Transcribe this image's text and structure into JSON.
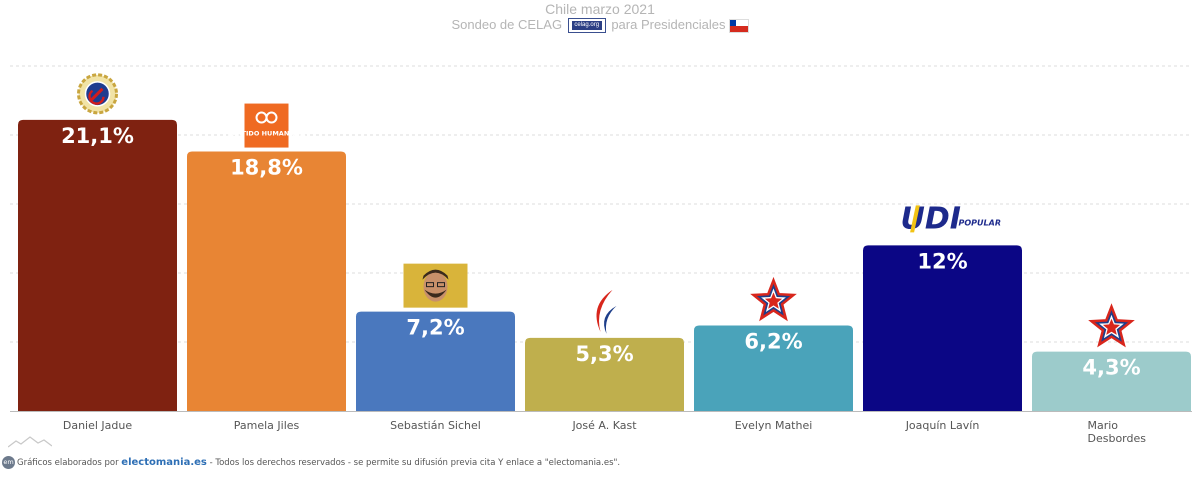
{
  "header": {
    "title": "Chile marzo 2021",
    "subtitle_before": "Sondeo de CELAG",
    "subtitle_after": "para Presidenciales",
    "celag_logo_text": "celag.org"
  },
  "colors": {
    "gridline": "#dddddd",
    "axis": "#bbbbbb"
  },
  "logos": {
    "partido_humanista": "PARTIDO HUMANISTA",
    "udi_main": "UDI",
    "udi_sub": "POPULAR"
  },
  "chart_data": {
    "type": "bar",
    "title": "",
    "xlabel": "",
    "ylabel": "",
    "ylim": [
      0,
      25
    ],
    "grid": true,
    "categories": [
      "Daniel Jadue",
      "Pamela Jiles",
      "Sebastián Sichel",
      "José A. Kast",
      "Evelyn Mathei",
      "Joaquín Lavín",
      "Mario Desbordes"
    ],
    "category_lines": [
      [
        "Daniel Jadue"
      ],
      [
        "Pamela Jiles"
      ],
      [
        "Sebastián Sichel"
      ],
      [
        "José A. Kast"
      ],
      [
        "Evelyn Mathei"
      ],
      [
        "Joaquín Lavín"
      ],
      [
        "Mario",
        "Desbordes"
      ]
    ],
    "values": [
      21.1,
      18.8,
      7.2,
      5.3,
      6.2,
      12,
      4.3
    ],
    "value_labels": [
      "21,1%",
      "18,8%",
      "7,2%",
      "5,3%",
      "6,2%",
      "12%",
      "4,3%"
    ],
    "bar_colors": [
      "#7f2211",
      "#e88534",
      "#4a78be",
      "#bfaf4d",
      "#4aa3ba",
      "#0b0685",
      "#9ccbcb"
    ],
    "party_icons": [
      "hammer-sickle-icon",
      "partido-humanista-logo",
      "candidate-photo",
      "flame-icon",
      "star-icon",
      "udi-logo",
      "star-icon"
    ]
  },
  "footer": {
    "logo_text": "em",
    "prefix": "Gráficos elaborados por",
    "brand": "electomania.es",
    "suffix": "- Todos los derechos reservados - se permite su difusión previa cita Y enlace a \"electomania.es\"."
  }
}
